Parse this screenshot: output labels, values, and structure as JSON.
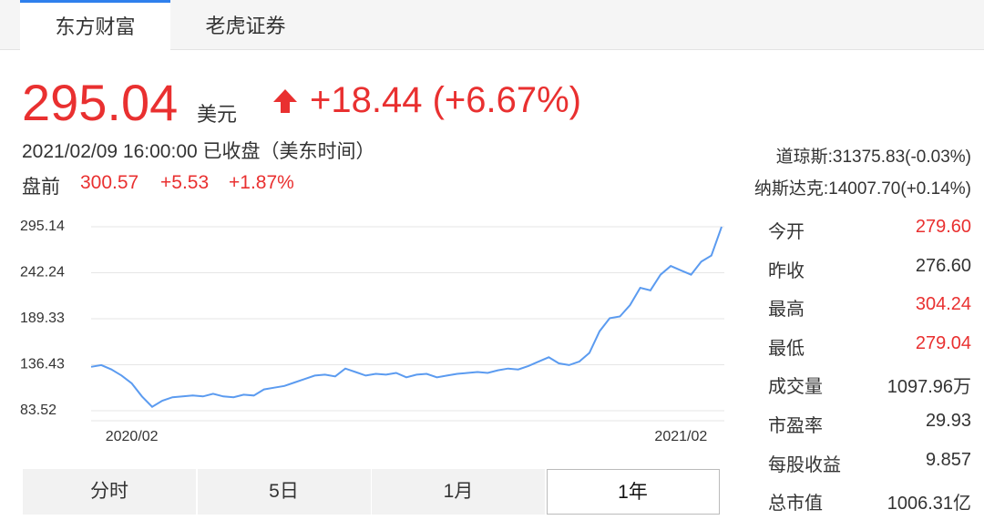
{
  "tabs": [
    {
      "label": "东方财富",
      "active": true
    },
    {
      "label": "老虎证券",
      "active": false
    }
  ],
  "quote": {
    "price": "295.04",
    "unit": "美元",
    "change": "+18.44 (+6.67%)",
    "time": "2021/02/09 16:00:00 已收盘（美东时间）",
    "premarket": {
      "label": "盘前",
      "price": "300.57",
      "change": "+5.53",
      "percent": "+1.87%"
    }
  },
  "indices": [
    "道琼斯:31375.83(-0.03%)",
    "纳斯达克:14007.70(+0.14%)"
  ],
  "stats": [
    {
      "label": "今开",
      "value": "279.60",
      "color": "#e93030"
    },
    {
      "label": "昨收",
      "value": "276.60",
      "color": "#333333"
    },
    {
      "label": "最高",
      "value": "304.24",
      "color": "#e93030"
    },
    {
      "label": "最低",
      "value": "279.04",
      "color": "#e93030"
    },
    {
      "label": "成交量",
      "value": "1097.96万",
      "color": "#333333"
    },
    {
      "label": "市盈率",
      "value": "29.93",
      "color": "#333333"
    },
    {
      "label": "每股收益",
      "value": "9.857",
      "color": "#333333"
    },
    {
      "label": "总市值",
      "value": "1006.31亿",
      "color": "#333333"
    }
  ],
  "periods": [
    {
      "label": "分时",
      "active": false
    },
    {
      "label": "5日",
      "active": false
    },
    {
      "label": "1月",
      "active": false
    },
    {
      "label": "1年",
      "active": true
    }
  ],
  "chart_data": {
    "type": "line",
    "categories": [
      null,
      null,
      null,
      null,
      "2020/02",
      null,
      null,
      null,
      null,
      null,
      null,
      null,
      null,
      null,
      null,
      null,
      null,
      null,
      null,
      null,
      null,
      null,
      null,
      null,
      null,
      null,
      null,
      null,
      null,
      null,
      null,
      null,
      null,
      null,
      null,
      null,
      null,
      null,
      null,
      null,
      null,
      null,
      null,
      null,
      null,
      null,
      null,
      null,
      null,
      null,
      null,
      null,
      null,
      null,
      null,
      null,
      null,
      null,
      "2021/02",
      null,
      null,
      null,
      null
    ],
    "series": [
      {
        "color": "#5b9bf0",
        "values": [
          134,
          136,
          131,
          124,
          115,
          100,
          88,
          95,
          99,
          100,
          101,
          100,
          103,
          100,
          99,
          102,
          101,
          108,
          110,
          112,
          116,
          120,
          124,
          125,
          123,
          132,
          128,
          124,
          126,
          125,
          127,
          122,
          125,
          126,
          122,
          124,
          126,
          127,
          128,
          127,
          130,
          132,
          131,
          135,
          140,
          145,
          138,
          136,
          140,
          150,
          175,
          190,
          192,
          205,
          225,
          222,
          240,
          250,
          245,
          240,
          255,
          262,
          295.04
        ]
      }
    ],
    "ylim": [
      83.52,
      295.14
    ],
    "yticks": [
      83.52,
      136.43,
      189.33,
      242.24,
      295.14
    ],
    "grid": true
  }
}
